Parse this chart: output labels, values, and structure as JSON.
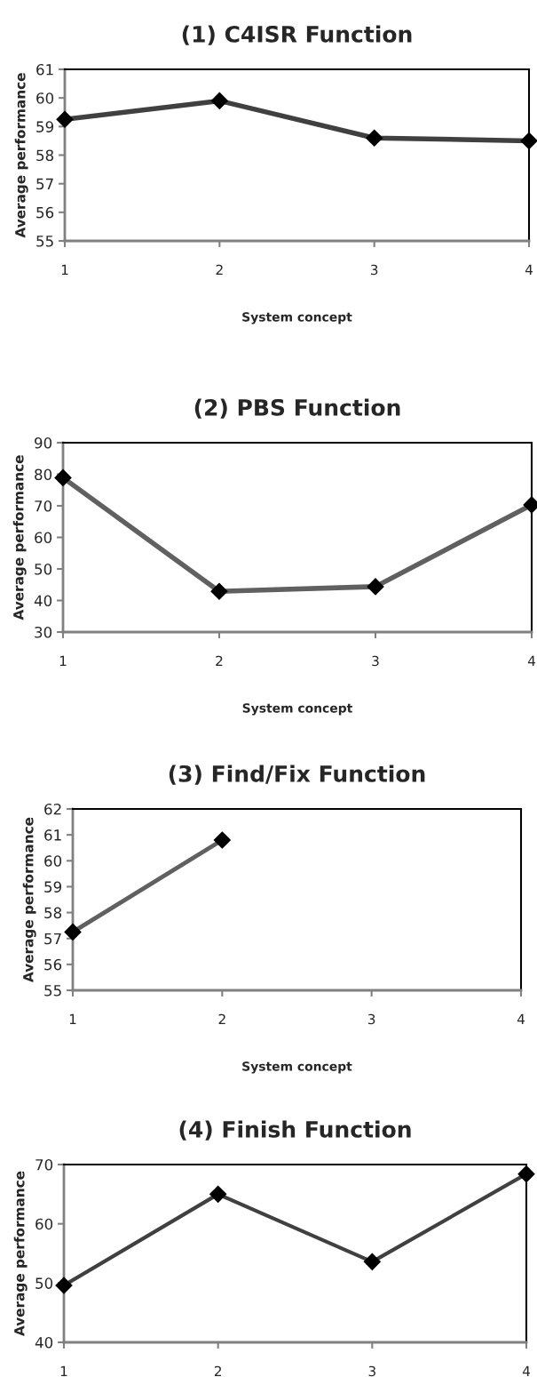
{
  "chart_data": [
    {
      "type": "line",
      "title": "(1) C4ISR Function",
      "xlabel": "System concept",
      "ylabel": "Average performance",
      "categories": [
        "1",
        "2",
        "3",
        "4"
      ],
      "series": [
        {
          "color": "#404040",
          "values": [
            59.25,
            59.9,
            58.6,
            58.5
          ]
        }
      ],
      "ylim": [
        55,
        61
      ],
      "yticks": [
        55,
        56,
        57,
        58,
        59,
        60,
        61
      ],
      "marker": "diamond",
      "line_style": "solid"
    },
    {
      "type": "line",
      "title": "(2) PBS Function",
      "xlabel": "System concept",
      "ylabel": "Average performance",
      "categories": [
        "1",
        "2",
        "3",
        "4"
      ],
      "series": [
        {
          "color": "#606060",
          "values": [
            78.9,
            42.9,
            44.4,
            70.3
          ]
        }
      ],
      "ylim": [
        30,
        90
      ],
      "yticks": [
        30,
        40,
        50,
        60,
        70,
        80,
        90
      ],
      "marker": "diamond",
      "line_style": "solid"
    },
    {
      "type": "line",
      "title": "(3) Find/Fix Function",
      "xlabel": "System concept",
      "ylabel": "Average performance",
      "categories": [
        "1",
        "2",
        "3",
        "4"
      ],
      "series": [
        {
          "color": "#606060",
          "values": [
            57.25,
            60.8,
            null,
            null
          ]
        }
      ],
      "ylim": [
        55,
        62
      ],
      "yticks": [
        55,
        56,
        57,
        58,
        59,
        60,
        61,
        62
      ],
      "marker": "diamond",
      "line_style": "solid"
    },
    {
      "type": "line",
      "title": "(4) Finish Function",
      "ylabel": "Average performance",
      "categories": [
        "1",
        "2",
        "3",
        "4"
      ],
      "series": [
        {
          "color": "#404040",
          "values": [
            49.6,
            65,
            53.6,
            68.4
          ]
        }
      ],
      "ylim": [
        40,
        70
      ],
      "yticks": [
        40,
        50,
        60,
        70
      ],
      "marker": "diamond",
      "line_style": "solid"
    }
  ]
}
